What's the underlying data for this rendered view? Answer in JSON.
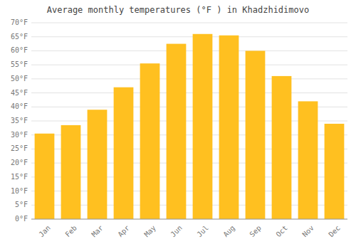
{
  "chart_data": {
    "type": "bar",
    "title": "Average monthly temperatures (°F ) in Khadzhidimovo",
    "categories": [
      "Jan",
      "Feb",
      "Mar",
      "Apr",
      "May",
      "Jun",
      "Jul",
      "Aug",
      "Sep",
      "Oct",
      "Nov",
      "Dec"
    ],
    "values": [
      30.5,
      33.5,
      39.0,
      47.0,
      55.5,
      62.5,
      66.0,
      65.5,
      60.0,
      51.0,
      42.0,
      34.0
    ],
    "color": "#FFC020",
    "ylim": [
      0,
      70
    ],
    "yticks": [
      {
        "value": 0,
        "label": "0°F"
      },
      {
        "value": 5,
        "label": "5°F"
      },
      {
        "value": 10,
        "label": "10°F"
      },
      {
        "value": 15,
        "label": "15°F"
      },
      {
        "value": 20,
        "label": "20°F"
      },
      {
        "value": 25,
        "label": "25°F"
      },
      {
        "value": 30,
        "label": "30°F"
      },
      {
        "value": 35,
        "label": "35°F"
      },
      {
        "value": 40,
        "label": "40°F"
      },
      {
        "value": 45,
        "label": "45°F"
      },
      {
        "value": 50,
        "label": "50°F"
      },
      {
        "value": 55,
        "label": "55°F"
      },
      {
        "value": 60,
        "label": "60°F"
      },
      {
        "value": 65,
        "label": "65°F"
      },
      {
        "value": 70,
        "label": "70°F"
      }
    ],
    "grid": true
  }
}
